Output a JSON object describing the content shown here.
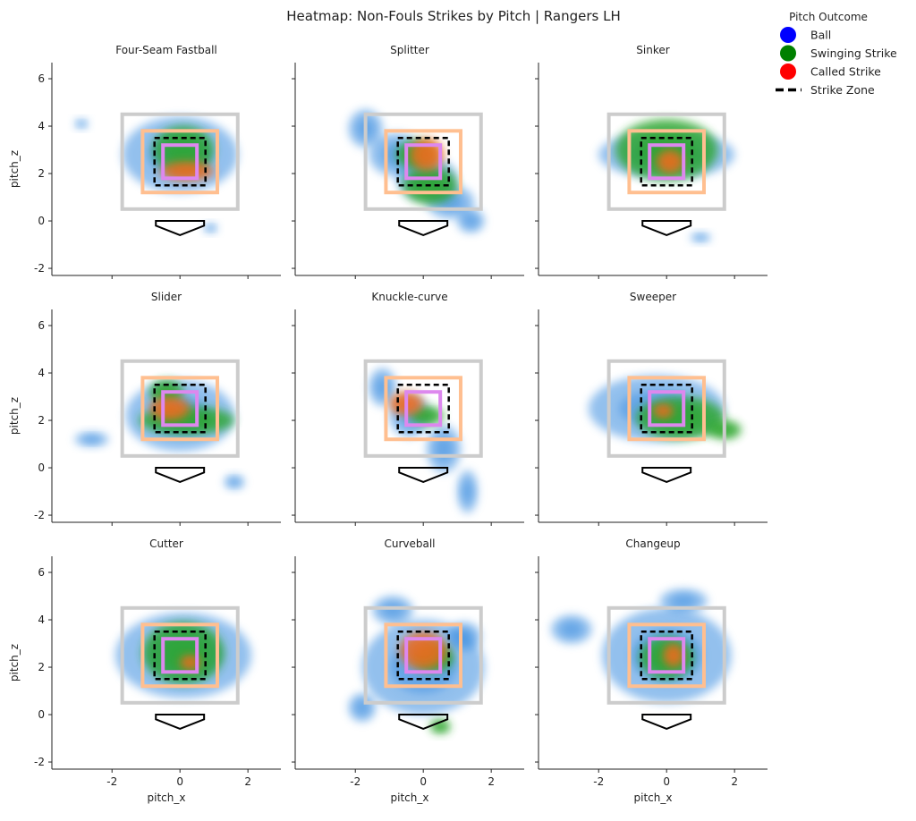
{
  "chart_data": {
    "type": "heatmap",
    "title": "Heatmap: Non-Fouls Strikes by Pitch | Rangers LH",
    "xlabel": "pitch_x",
    "ylabel": "pitch_z",
    "xlim": [
      -3.77,
      2.97
    ],
    "ylim": [
      -2.3,
      6.68
    ],
    "xticks": [
      -2,
      0,
      2
    ],
    "yticks": [
      -2,
      0,
      2,
      4,
      6
    ],
    "legend": {
      "title": "Pitch Outcome",
      "placement": "top-right",
      "entries": [
        {
          "label": "Ball",
          "color": "#0000ff",
          "marker": "circle"
        },
        {
          "label": "Swinging Strike",
          "color": "#008000",
          "marker": "circle"
        },
        {
          "label": "Called Strike",
          "color": "#ff0000",
          "marker": "circle"
        },
        {
          "label": "Strike Zone",
          "color": "#000000",
          "marker": "dashed-line"
        }
      ]
    },
    "kde_colors": {
      "Ball": "#3b8de0",
      "Swinging Strike": "#2aa52a",
      "Called Strike": "#f06a1a"
    },
    "zones": [
      {
        "name": "outer",
        "x": [
          -1.7,
          1.7
        ],
        "z": [
          0.5,
          4.5
        ],
        "color": "#cccccc",
        "style": "solid"
      },
      {
        "name": "edge",
        "x": [
          -1.1,
          1.1
        ],
        "z": [
          1.2,
          3.8
        ],
        "color": "#ffbf90",
        "style": "solid"
      },
      {
        "name": "strike-zone",
        "x": [
          -0.75,
          0.75
        ],
        "z": [
          1.5,
          3.5
        ],
        "color": "#000000",
        "style": "dashed"
      },
      {
        "name": "heart",
        "x": [
          -0.5,
          0.5
        ],
        "z": [
          1.8,
          3.2
        ],
        "color": "#dd88ee",
        "style": "solid"
      }
    ],
    "home_plate": [
      [
        -0.71,
        0
      ],
      [
        0.71,
        0
      ],
      [
        0.71,
        -0.2
      ],
      [
        0,
        -0.6
      ],
      [
        -0.71,
        -0.2
      ]
    ],
    "panels": [
      {
        "title": "Four-Seam Fastball",
        "density": [
          [
            "Ball",
            0,
            2.8,
            1.7,
            1.6
          ],
          [
            "Ball",
            -2.9,
            4.1,
            0.2,
            0.2
          ],
          [
            "Ball",
            0.9,
            -0.3,
            0.2,
            0.2
          ],
          [
            "Swinging Strike",
            0.1,
            3.0,
            0.9,
            1.0
          ],
          [
            "Called Strike",
            0.2,
            2.1,
            0.8,
            0.4
          ]
        ]
      },
      {
        "title": "Splitter",
        "density": [
          [
            "Ball",
            -1.7,
            3.9,
            0.5,
            0.8
          ],
          [
            "Ball",
            -0.8,
            2.8,
            0.8,
            0.9
          ],
          [
            "Ball",
            0.1,
            1.8,
            0.9,
            0.9
          ],
          [
            "Ball",
            0.8,
            0.8,
            0.7,
            0.7
          ],
          [
            "Ball",
            1.4,
            0,
            0.4,
            0.5
          ],
          [
            "Swinging Strike",
            0.2,
            1.5,
            0.8,
            0.8
          ],
          [
            "Swinging Strike",
            -0.2,
            2.8,
            0.6,
            0.6
          ],
          [
            "Called Strike",
            0.1,
            2.8,
            0.5,
            0.7
          ]
        ]
      },
      {
        "title": "Sinker",
        "density": [
          [
            "Ball",
            0,
            2.8,
            2.0,
            1.0
          ],
          [
            "Ball",
            1.0,
            -0.7,
            0.3,
            0.2
          ],
          [
            "Swinging Strike",
            0,
            3.0,
            1.5,
            1.3
          ],
          [
            "Called Strike",
            0.1,
            2.5,
            0.4,
            0.5
          ]
        ]
      },
      {
        "title": "Slider",
        "density": [
          [
            "Ball",
            0,
            2.2,
            1.6,
            1.5
          ],
          [
            "Ball",
            -2.6,
            1.2,
            0.5,
            0.3
          ],
          [
            "Ball",
            1.6,
            -0.6,
            0.3,
            0.3
          ],
          [
            "Swinging Strike",
            0.2,
            2.0,
            1.4,
            0.6
          ],
          [
            "Swinging Strike",
            -0.4,
            3.2,
            0.5,
            0.5
          ],
          [
            "Called Strike",
            -0.3,
            2.5,
            0.6,
            0.5
          ]
        ]
      },
      {
        "title": "Knuckle-curve",
        "density": [
          [
            "Ball",
            -1.2,
            3.4,
            0.4,
            0.8
          ],
          [
            "Ball",
            -0.4,
            2.2,
            0.6,
            0.9
          ],
          [
            "Ball",
            0.6,
            0.8,
            0.5,
            1.0
          ],
          [
            "Ball",
            1.3,
            -1.0,
            0.3,
            0.9
          ],
          [
            "Swinging Strike",
            0.1,
            2.2,
            0.5,
            0.4
          ],
          [
            "Called Strike",
            -0.5,
            2.7,
            0.5,
            0.5
          ]
        ]
      },
      {
        "title": "Sweeper",
        "density": [
          [
            "Ball",
            -0.3,
            2.5,
            2.0,
            1.4
          ],
          [
            "Swinging Strike",
            0.4,
            2.1,
            1.3,
            0.9
          ],
          [
            "Swinging Strike",
            1.7,
            1.6,
            0.5,
            0.4
          ],
          [
            "Called Strike",
            -0.1,
            2.4,
            0.3,
            0.3
          ]
        ]
      },
      {
        "title": "Cutter",
        "density": [
          [
            "Ball",
            0.1,
            2.5,
            2.0,
            1.8
          ],
          [
            "Swinging Strike",
            0.1,
            2.6,
            1.2,
            1.3
          ],
          [
            "Called Strike",
            0.3,
            2.2,
            0.3,
            0.3
          ]
        ]
      },
      {
        "title": "Curveball",
        "density": [
          [
            "Ball",
            0,
            2.0,
            1.8,
            2.0
          ],
          [
            "Ball",
            -0.9,
            4.4,
            0.6,
            0.6
          ],
          [
            "Ball",
            -1.8,
            0.3,
            0.4,
            0.6
          ],
          [
            "Ball",
            1.2,
            3.3,
            0.5,
            0.6
          ],
          [
            "Swinging Strike",
            0.5,
            -0.5,
            0.3,
            0.3
          ],
          [
            "Swinging Strike",
            0.3,
            2.4,
            0.6,
            0.6
          ],
          [
            "Called Strike",
            0,
            2.7,
            0.7,
            0.8
          ]
        ]
      },
      {
        "title": "Changeup",
        "density": [
          [
            "Ball",
            0,
            2.5,
            1.9,
            2.0
          ],
          [
            "Ball",
            -2.8,
            3.6,
            0.6,
            0.6
          ],
          [
            "Ball",
            0.5,
            4.8,
            0.7,
            0.5
          ],
          [
            "Swinging Strike",
            0,
            2.4,
            0.8,
            0.9
          ],
          [
            "Called Strike",
            0.2,
            2.5,
            0.3,
            0.5
          ]
        ]
      }
    ]
  }
}
